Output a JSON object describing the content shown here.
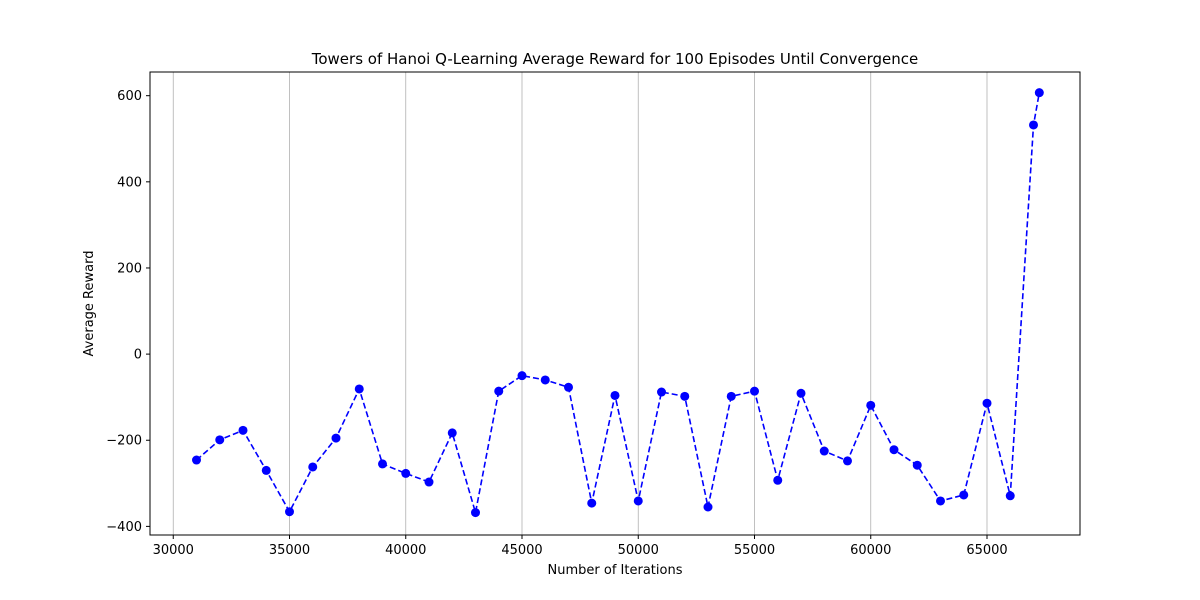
{
  "chart_data": {
    "type": "line",
    "title": "Towers of Hanoi Q-Learning Average Reward for 100 Episodes Until Convergence",
    "xlabel": "Number of Iterations",
    "ylabel": "Average Reward",
    "xlim": [
      29000,
      69000
    ],
    "ylim": [
      -420,
      655
    ],
    "xticks": [
      30000,
      35000,
      40000,
      45000,
      50000,
      55000,
      60000,
      65000
    ],
    "yticks": [
      -400,
      -200,
      0,
      200,
      400,
      600
    ],
    "grid": "x-only",
    "line_style": "dashed",
    "marker": "circle",
    "color": "#0000ff",
    "series": [
      {
        "x": [
          31000,
          32000,
          33000,
          34000,
          35000,
          36000,
          37000,
          38000,
          39000,
          40000,
          41000,
          42000,
          43000,
          44000,
          45000,
          46000,
          47000,
          48000,
          49000,
          50000,
          51000,
          52000,
          53000,
          54000,
          55000,
          56000,
          57000,
          58000,
          59000,
          60000,
          61000,
          62000,
          63000,
          64000,
          65000,
          66000,
          67000,
          67250
        ],
        "values": [
          -246,
          -199,
          -177,
          -270,
          -366,
          -262,
          -195,
          -81,
          -255,
          -277,
          -297,
          -183,
          -368,
          -86,
          -50,
          -60,
          -77,
          -346,
          -96,
          -341,
          -88,
          -98,
          -355,
          -98,
          -86,
          -293,
          -91,
          -225,
          -248,
          -119,
          -222,
          -258,
          -341,
          -327,
          -114,
          -329,
          532,
          607
        ]
      }
    ]
  }
}
